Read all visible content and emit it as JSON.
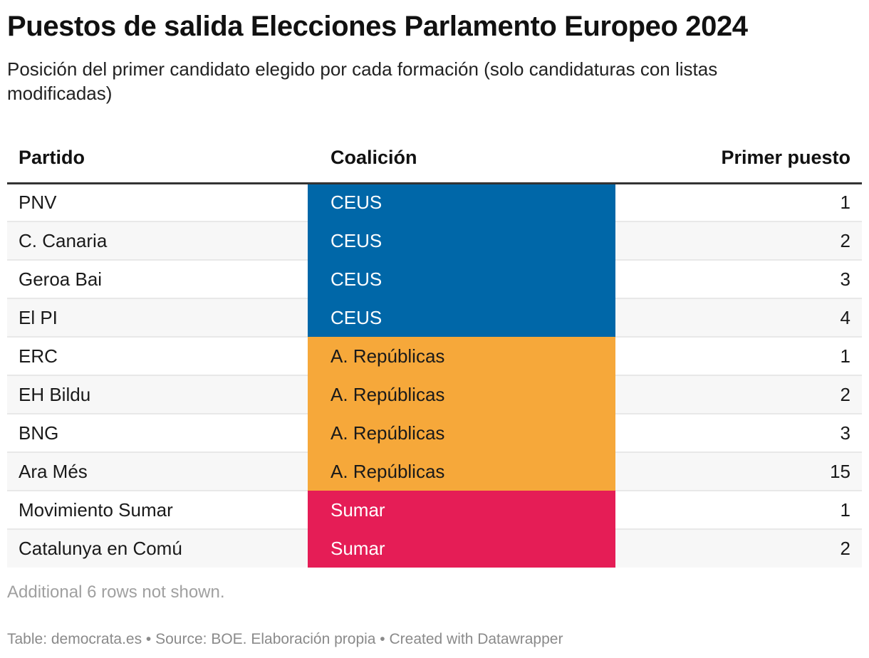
{
  "title": "Puestos de salida Elecciones Parlamento Europeo 2024",
  "subtitle": "Posición del primer candidato elegido por cada formación (solo candidaturas con listas modificadas)",
  "note": "Additional 6 rows not shown.",
  "footer": "Table: democrata.es • Source: BOE. Elaboración propia • Created with Datawrapper",
  "coalition_colors": {
    "CEUS": {
      "bg": "#0067a8",
      "fg": "#ffffff"
    },
    "A. Repúblicas": {
      "bg": "#f6a83a",
      "fg": "#1a1a1a"
    },
    "Sumar": {
      "bg": "#e51d56",
      "fg": "#ffffff"
    }
  },
  "chart_data": {
    "type": "table",
    "columns": [
      "Partido",
      "Coalición",
      "Primer puesto"
    ],
    "rows": [
      [
        "PNV",
        "CEUS",
        1
      ],
      [
        "C. Canaria",
        "CEUS",
        2
      ],
      [
        "Geroa Bai",
        "CEUS",
        3
      ],
      [
        "El PI",
        "CEUS",
        4
      ],
      [
        "ERC",
        "A. Repúblicas",
        1
      ],
      [
        "EH Bildu",
        "A. Repúblicas",
        2
      ],
      [
        "BNG",
        "A. Repúblicas",
        3
      ],
      [
        "Ara Més",
        "A. Repúblicas",
        15
      ],
      [
        "Movimiento Sumar",
        "Sumar",
        1
      ],
      [
        "Catalunya en Comú",
        "Sumar",
        2
      ]
    ]
  }
}
